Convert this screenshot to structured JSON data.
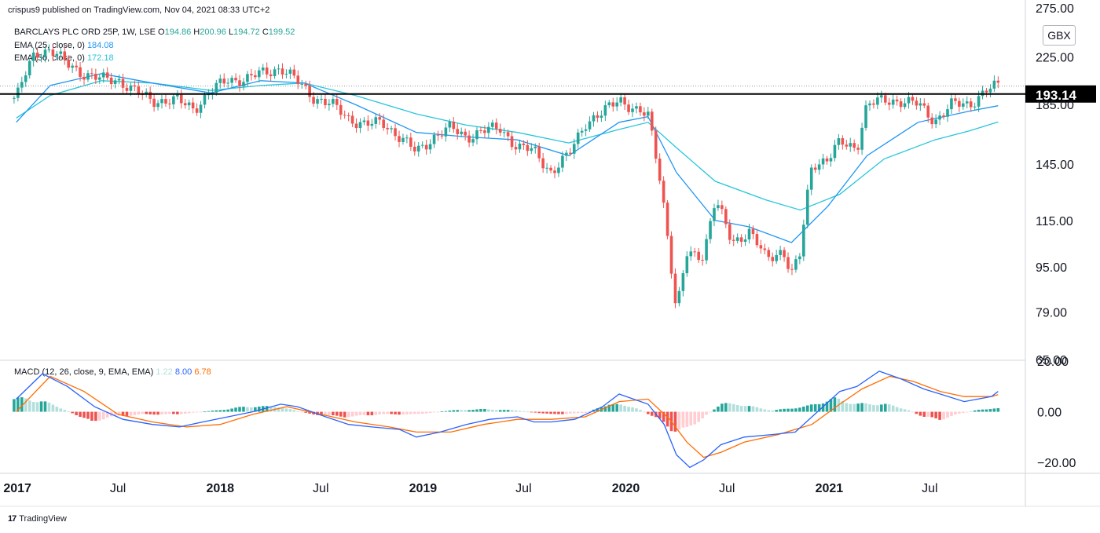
{
  "published": "crispus9 published on TradingView.com, Nov 04, 2021 08:33 UTC+2",
  "legend": {
    "symbol": "BARCLAYS PLC ORD 25P, 1W, LSE",
    "o_label": "O",
    "o": "194.86",
    "h_label": "H",
    "h": "200.96",
    "l_label": "L",
    "l": "194.72",
    "c_label": "C",
    "c": "199.52",
    "ema25_label": "EMA (25, close, 0)",
    "ema25": "184.08",
    "ema50_label": "EMA (50, close, 0)",
    "ema50": "172.18",
    "macd_label": "MACD (12, 26, close, 9, EMA, EMA)",
    "macd_hist": "1.22",
    "macd_line": "8.00",
    "macd_signal": "6.78"
  },
  "currency": "GBX",
  "footer": "TradingView",
  "colors": {
    "up": "#26a69a",
    "down": "#ef5350",
    "ema25": "#2196f3",
    "ema50": "#26c6da",
    "macd": "#2962ff",
    "signal": "#ff6d00",
    "hline": "#000000"
  },
  "chart_data": [
    {
      "type": "candlestick",
      "title": "BARCLAYS PLC ORD 25P, 1W, LSE",
      "y_ticks": [
        "275.00",
        "225.00",
        "185.00",
        "145.00",
        "115.00",
        "95.00",
        "79.00",
        "65.00"
      ],
      "ylim": [
        65,
        275
      ],
      "y_scale": "log",
      "x_ticks": [
        "2017",
        "Jul",
        "2018",
        "Jul",
        "2019",
        "Jul",
        "2020",
        "Jul",
        "2021",
        "Jul"
      ],
      "horizontal_line": {
        "value": 193.14,
        "label": "193.14"
      },
      "last_close": 199.52,
      "close_series": [
        [
          "2016-12-30",
          190
        ],
        [
          "2017-02-01",
          228
        ],
        [
          "2017-03-01",
          232
        ],
        [
          "2017-04-01",
          218
        ],
        [
          "2017-05-01",
          210
        ],
        [
          "2017-06-01",
          205
        ],
        [
          "2017-07-01",
          205
        ],
        [
          "2017-08-01",
          195
        ],
        [
          "2017-09-01",
          188
        ],
        [
          "2017-10-15",
          188
        ],
        [
          "2017-11-15",
          182
        ],
        [
          "2017-12-15",
          195
        ],
        [
          "2018-01-15",
          205
        ],
        [
          "2018-02-15",
          205
        ],
        [
          "2018-03-15",
          210
        ],
        [
          "2018-04-20",
          215
        ],
        [
          "2018-05-20",
          203
        ],
        [
          "2018-06-20",
          190
        ],
        [
          "2018-07-20",
          185
        ],
        [
          "2018-08-20",
          175
        ],
        [
          "2018-09-20",
          170
        ],
        [
          "2018-10-20",
          172
        ],
        [
          "2018-11-20",
          162
        ],
        [
          "2018-12-20",
          152
        ],
        [
          "2019-01-20",
          162
        ],
        [
          "2019-02-20",
          168
        ],
        [
          "2019-03-20",
          162
        ],
        [
          "2019-04-20",
          166
        ],
        [
          "2019-05-20",
          168
        ],
        [
          "2019-06-20",
          155
        ],
        [
          "2019-07-20",
          153
        ],
        [
          "2019-08-20",
          140
        ],
        [
          "2019-09-20",
          150
        ],
        [
          "2019-10-20",
          172
        ],
        [
          "2019-11-20",
          178
        ],
        [
          "2019-12-20",
          190
        ],
        [
          "2020-01-20",
          180
        ],
        [
          "2020-02-10",
          176
        ],
        [
          "2020-03-01",
          140
        ],
        [
          "2020-03-20",
          100
        ],
        [
          "2020-04-01",
          78
        ],
        [
          "2020-04-20",
          100
        ],
        [
          "2020-05-20",
          100
        ],
        [
          "2020-06-10",
          125
        ],
        [
          "2020-07-10",
          105
        ],
        [
          "2020-08-10",
          110
        ],
        [
          "2020-09-10",
          98
        ],
        [
          "2020-10-10",
          102
        ],
        [
          "2020-10-25",
          92
        ],
        [
          "2020-11-10",
          100
        ],
        [
          "2020-12-01",
          145
        ],
        [
          "2020-12-30",
          148
        ],
        [
          "2021-01-20",
          158
        ],
        [
          "2021-02-20",
          155
        ],
        [
          "2021-03-10",
          185
        ],
        [
          "2021-04-10",
          188
        ],
        [
          "2021-05-10",
          188
        ],
        [
          "2021-06-10",
          185
        ],
        [
          "2021-07-10",
          173
        ],
        [
          "2021-08-10",
          185
        ],
        [
          "2021-09-10",
          185
        ],
        [
          "2021-10-10",
          196
        ],
        [
          "2021-11-01",
          199.52
        ]
      ],
      "ema25_series": [
        [
          "2016-12-30",
          172
        ],
        [
          "2017-03-01",
          200
        ],
        [
          "2017-06-01",
          210
        ],
        [
          "2017-09-01",
          202
        ],
        [
          "2017-12-15",
          194
        ],
        [
          "2018-03-15",
          204
        ],
        [
          "2018-06-01",
          202
        ],
        [
          "2018-09-01",
          185
        ],
        [
          "2018-12-20",
          165
        ],
        [
          "2019-03-20",
          162
        ],
        [
          "2019-06-20",
          160
        ],
        [
          "2019-09-20",
          150
        ],
        [
          "2019-12-20",
          172
        ],
        [
          "2020-02-10",
          176
        ],
        [
          "2020-04-01",
          140
        ],
        [
          "2020-06-10",
          115
        ],
        [
          "2020-08-10",
          112
        ],
        [
          "2020-10-25",
          105
        ],
        [
          "2020-12-30",
          122
        ],
        [
          "2021-03-10",
          150
        ],
        [
          "2021-06-10",
          172
        ],
        [
          "2021-09-10",
          180
        ],
        [
          "2021-11-01",
          184.08
        ]
      ],
      "ema50_series": [
        [
          "2016-12-30",
          175
        ],
        [
          "2017-03-01",
          192
        ],
        [
          "2017-06-01",
          204
        ],
        [
          "2017-09-01",
          202
        ],
        [
          "2017-12-15",
          196
        ],
        [
          "2018-03-15",
          200
        ],
        [
          "2018-06-01",
          202
        ],
        [
          "2018-09-01",
          192
        ],
        [
          "2018-12-20",
          178
        ],
        [
          "2019-03-20",
          170
        ],
        [
          "2019-06-20",
          165
        ],
        [
          "2019-09-20",
          158
        ],
        [
          "2019-12-20",
          167
        ],
        [
          "2020-02-10",
          172
        ],
        [
          "2020-04-01",
          155
        ],
        [
          "2020-06-10",
          135
        ],
        [
          "2020-09-10",
          125
        ],
        [
          "2020-11-10",
          120
        ],
        [
          "2021-01-20",
          128
        ],
        [
          "2021-04-10",
          148
        ],
        [
          "2021-07-10",
          160
        ],
        [
          "2021-09-10",
          166
        ],
        [
          "2021-11-01",
          172.18
        ]
      ]
    },
    {
      "type": "line",
      "title": "MACD (12, 26, close, 9, EMA, EMA)",
      "y_ticks": [
        "20.00",
        "0.00",
        "−20.00"
      ],
      "ylim": [
        -24,
        20
      ],
      "series": [
        {
          "name": "macd",
          "points": [
            [
              "2016-12-30",
              5
            ],
            [
              "2017-02-15",
              15
            ],
            [
              "2017-04-01",
              10
            ],
            [
              "2017-05-20",
              2
            ],
            [
              "2017-07-10",
              -3
            ],
            [
              "2017-09-01",
              -5
            ],
            [
              "2017-10-20",
              -6
            ],
            [
              "2017-12-01",
              -4
            ],
            [
              "2018-01-15",
              -2
            ],
            [
              "2018-03-01",
              0
            ],
            [
              "2018-04-20",
              3
            ],
            [
              "2018-05-20",
              2
            ],
            [
              "2018-07-10",
              -2
            ],
            [
              "2018-08-20",
              -5
            ],
            [
              "2018-10-01",
              -6
            ],
            [
              "2018-11-20",
              -7
            ],
            [
              "2018-12-20",
              -10
            ],
            [
              "2019-02-01",
              -8
            ],
            [
              "2019-03-20",
              -5
            ],
            [
              "2019-05-01",
              -3
            ],
            [
              "2019-06-20",
              -2
            ],
            [
              "2019-07-20",
              -4
            ],
            [
              "2019-08-20",
              -4
            ],
            [
              "2019-10-01",
              -3
            ],
            [
              "2019-11-20",
              2
            ],
            [
              "2019-12-20",
              7
            ],
            [
              "2020-02-10",
              3
            ],
            [
              "2020-03-10",
              -5
            ],
            [
              "2020-04-01",
              -17
            ],
            [
              "2020-04-25",
              -22
            ],
            [
              "2020-05-20",
              -19
            ],
            [
              "2020-06-20",
              -13
            ],
            [
              "2020-08-01",
              -10
            ],
            [
              "2020-09-20",
              -9
            ],
            [
              "2020-11-01",
              -8
            ],
            [
              "2020-12-01",
              -2
            ],
            [
              "2021-01-20",
              8
            ],
            [
              "2021-02-20",
              10
            ],
            [
              "2021-04-01",
              16
            ],
            [
              "2021-05-10",
              13
            ],
            [
              "2021-06-20",
              9
            ],
            [
              "2021-07-20",
              7
            ],
            [
              "2021-09-01",
              4
            ],
            [
              "2021-10-20",
              6
            ],
            [
              "2021-11-01",
              8
            ]
          ]
        },
        {
          "name": "signal",
          "points": [
            [
              "2016-12-30",
              0
            ],
            [
              "2017-03-01",
              14
            ],
            [
              "2017-05-01",
              8
            ],
            [
              "2017-07-01",
              -1
            ],
            [
              "2017-09-01",
              -4
            ],
            [
              "2017-11-01",
              -6
            ],
            [
              "2018-01-01",
              -5
            ],
            [
              "2018-03-01",
              -1
            ],
            [
              "2018-05-01",
              2
            ],
            [
              "2018-07-01",
              -1
            ],
            [
              "2018-09-01",
              -4
            ],
            [
              "2018-11-01",
              -6
            ],
            [
              "2018-12-20",
              -8
            ],
            [
              "2019-02-20",
              -8
            ],
            [
              "2019-04-20",
              -5
            ],
            [
              "2019-06-20",
              -3
            ],
            [
              "2019-08-20",
              -3
            ],
            [
              "2019-10-20",
              -2
            ],
            [
              "2019-12-20",
              4
            ],
            [
              "2020-02-10",
              5
            ],
            [
              "2020-03-20",
              -3
            ],
            [
              "2020-04-20",
              -12
            ],
            [
              "2020-05-20",
              -18
            ],
            [
              "2020-06-20",
              -16
            ],
            [
              "2020-08-01",
              -12
            ],
            [
              "2020-10-01",
              -9
            ],
            [
              "2020-12-01",
              -5
            ],
            [
              "2021-01-20",
              3
            ],
            [
              "2021-03-01",
              9
            ],
            [
              "2021-04-20",
              14
            ],
            [
              "2021-06-01",
              12
            ],
            [
              "2021-07-20",
              8
            ],
            [
              "2021-09-01",
              6
            ],
            [
              "2021-10-20",
              6
            ],
            [
              "2021-11-01",
              6.78
            ]
          ]
        },
        {
          "name": "histogram",
          "points": [
            [
              "2017-01-15",
              5
            ],
            [
              "2017-02-15",
              4
            ],
            [
              "2017-03-15",
              2
            ],
            [
              "2017-04-15",
              -1
            ],
            [
              "2017-05-15",
              -4
            ],
            [
              "2017-06-15",
              -2
            ],
            [
              "2017-08-15",
              -1
            ],
            [
              "2017-10-15",
              -1
            ],
            [
              "2018-01-15",
              1
            ],
            [
              "2018-02-15",
              2
            ],
            [
              "2018-04-15",
              2
            ],
            [
              "2018-06-15",
              -1
            ],
            [
              "2018-08-15",
              -2
            ],
            [
              "2018-10-15",
              -1
            ],
            [
              "2018-12-20",
              -1
            ],
            [
              "2019-02-20",
              0.5
            ],
            [
              "2019-04-20",
              1
            ],
            [
              "2019-06-20",
              0.5
            ],
            [
              "2019-08-20",
              -1
            ],
            [
              "2019-10-20",
              -0.5
            ],
            [
              "2019-12-01",
              3
            ],
            [
              "2020-01-15",
              2
            ],
            [
              "2020-03-01",
              -3
            ],
            [
              "2020-03-25",
              -7
            ],
            [
              "2020-04-20",
              -7
            ],
            [
              "2020-05-20",
              -2
            ],
            [
              "2020-06-20",
              3
            ],
            [
              "2020-07-20",
              3
            ],
            [
              "2020-09-20",
              0.5
            ],
            [
              "2020-11-20",
              2
            ],
            [
              "2021-01-10",
              5
            ],
            [
              "2021-02-20",
              3
            ],
            [
              "2021-04-10",
              3
            ],
            [
              "2021-05-20",
              1
            ],
            [
              "2021-06-20",
              -2
            ],
            [
              "2021-07-20",
              -3
            ],
            [
              "2021-08-20",
              -1
            ],
            [
              "2021-10-01",
              1
            ],
            [
              "2021-11-01",
              1.22
            ]
          ]
        }
      ]
    }
  ]
}
